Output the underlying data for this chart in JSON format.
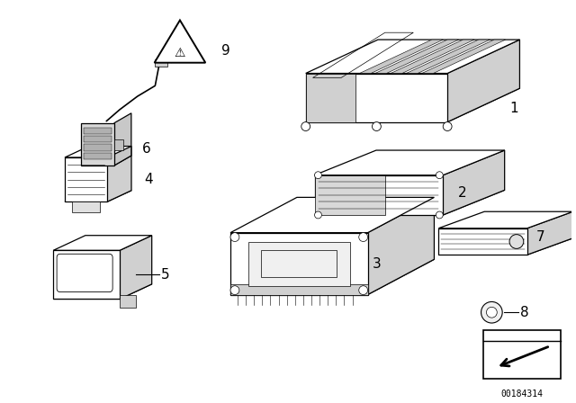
{
  "background_color": "#ffffff",
  "line_color": "#000000",
  "diagram_id": "00184314",
  "fig_width": 6.4,
  "fig_height": 4.48,
  "dpi": 100
}
